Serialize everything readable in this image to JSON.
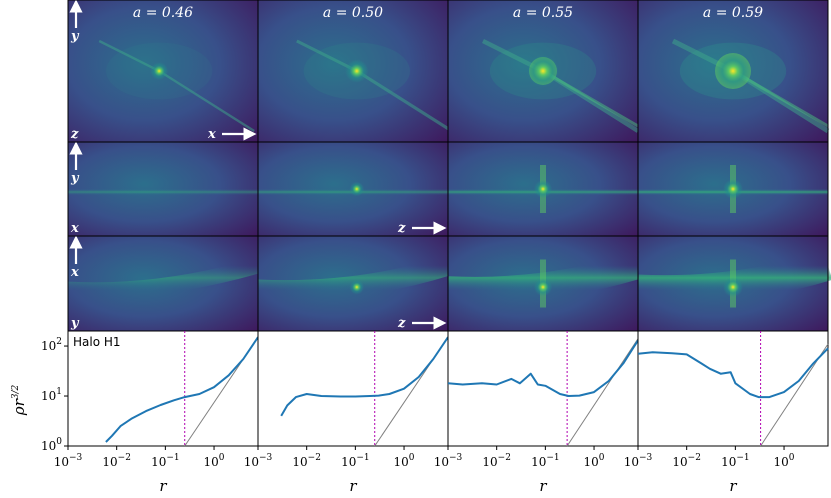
{
  "snapshots": [
    {
      "label": "a = 0.46"
    },
    {
      "label": "a = 0.50"
    },
    {
      "label": "a = 0.55"
    },
    {
      "label": "a = 0.59"
    }
  ],
  "projections": [
    {
      "up": "y",
      "corner": "z",
      "right": "x"
    },
    {
      "up": "y",
      "corner": "x",
      "right": "z"
    },
    {
      "up": "x",
      "corner": "y",
      "right": "z"
    }
  ],
  "profile": {
    "halo_label": "Halo H1",
    "xlabel": "r",
    "ylabel": "ρr",
    "ylabel_exp": "3/2",
    "x_ticks": [
      {
        "base": "10",
        "exp": "−3"
      },
      {
        "base": "10",
        "exp": "−2"
      },
      {
        "base": "10",
        "exp": "−1"
      },
      {
        "base": "10",
        "exp": "0"
      }
    ],
    "y_ticks": [
      {
        "base": "10",
        "exp": "0"
      },
      {
        "base": "10",
        "exp": "1"
      },
      {
        "base": "10",
        "exp": "2"
      }
    ]
  },
  "colors": {
    "background": "#3c1052",
    "line": "#1f77b4",
    "reference": "#808080",
    "marker": "#b000b0",
    "glow": "#3ec48a",
    "core": "#fde725"
  },
  "chart_data": {
    "type": "line",
    "xlabel": "r",
    "ylabel": "ρr^{3/2}",
    "xscale": "log",
    "yscale": "log",
    "xlim": [
      0.001,
      8
    ],
    "ylim": [
      1,
      200
    ],
    "panels": [
      {
        "title": "a = 0.46",
        "marker_r": 0.25,
        "series": [
          {
            "x": [
              0.006,
              0.008,
              0.012,
              0.02,
              0.04,
              0.08,
              0.15,
              0.25,
              0.5,
              1.0,
              2.0,
              4.0,
              8.0
            ],
            "y": [
              1.2,
              1.6,
              2.5,
              3.5,
              5.0,
              6.6,
              8.2,
              9.5,
              11,
              15,
              26,
              55,
              150
            ]
          }
        ],
        "reference": {
          "x": [
            0.25,
            8.0
          ],
          "y": [
            1.0,
            150
          ]
        }
      },
      {
        "title": "a = 0.50",
        "marker_r": 0.25,
        "series": [
          {
            "x": [
              0.003,
              0.004,
              0.006,
              0.01,
              0.02,
              0.05,
              0.1,
              0.2,
              0.3,
              0.5,
              1.0,
              2.0,
              4.0,
              8.0
            ],
            "y": [
              4.0,
              6.5,
              9.5,
              11,
              10,
              9.8,
              9.8,
              10,
              10.2,
              11,
              14,
              24,
              55,
              150
            ]
          }
        ],
        "reference": {
          "x": [
            0.25,
            8.0
          ],
          "y": [
            1.0,
            150
          ]
        }
      },
      {
        "title": "a = 0.55",
        "marker_r": 0.28,
        "series": [
          {
            "x": [
              0.001,
              0.002,
              0.005,
              0.01,
              0.02,
              0.03,
              0.05,
              0.07,
              0.1,
              0.2,
              0.3,
              0.5,
              1.0,
              2.0,
              4.0,
              8.0
            ],
            "y": [
              18,
              17,
              18,
              17,
              22,
              18,
              28,
              17,
              16,
              11,
              10,
              10.2,
              12,
              20,
              45,
              130
            ]
          }
        ],
        "reference": {
          "x": [
            0.28,
            8.0
          ],
          "y": [
            1.0,
            140
          ]
        }
      },
      {
        "title": "a = 0.59",
        "marker_r": 0.33,
        "series": [
          {
            "x": [
              0.001,
              0.002,
              0.005,
              0.01,
              0.02,
              0.03,
              0.05,
              0.08,
              0.1,
              0.2,
              0.3,
              0.5,
              1.0,
              2.0,
              4.0,
              8.0
            ],
            "y": [
              70,
              75,
              72,
              68,
              45,
              35,
              28,
              30,
              18,
              11,
              9.5,
              9.5,
              12,
              20,
              45,
              90
            ]
          }
        ],
        "reference": {
          "x": [
            0.33,
            8.0
          ],
          "y": [
            1.0,
            110
          ]
        }
      }
    ]
  }
}
